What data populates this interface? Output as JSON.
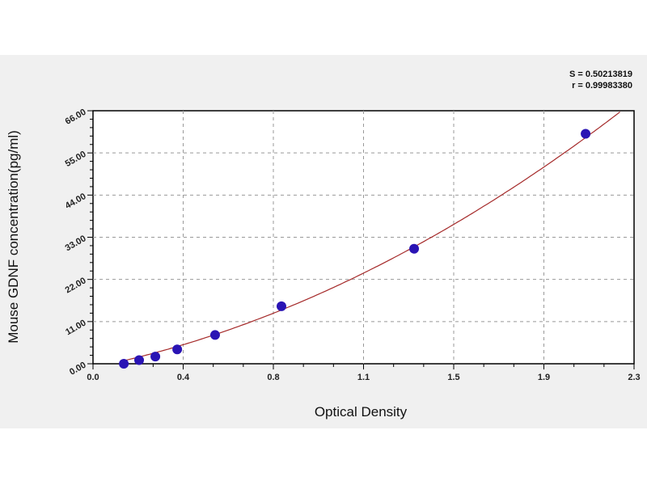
{
  "chart_data": {
    "type": "scatter",
    "title": "",
    "xlabel": "Optical Density",
    "ylabel": "Mouse GDNF concentration(pg/ml)",
    "xlim": [
      0,
      2.3
    ],
    "ylim": [
      0,
      66
    ],
    "x_ticks": [
      "0.0",
      "0.4",
      "0.8",
      "1.1",
      "1.5",
      "1.9",
      "2.3"
    ],
    "y_ticks": [
      "0.00",
      "11.00",
      "22.00",
      "33.00",
      "44.00",
      "55.00",
      "66.00"
    ],
    "grid": true,
    "stats": {
      "s": "S = 0.50213819",
      "r": "r = 0.99983380"
    },
    "series": [
      {
        "x": [
          0.131,
          0.196,
          0.265,
          0.358,
          0.519,
          0.801,
          1.365,
          2.094
        ],
        "y": [
          0,
          0.94,
          1.88,
          3.75,
          7.5,
          15,
          30,
          60
        ]
      }
    ],
    "fit_curve": true,
    "colors": {
      "points": "#2a14b4",
      "curve": "#a52a2a",
      "grid": "#999999",
      "background": "#f0f0f0"
    }
  }
}
